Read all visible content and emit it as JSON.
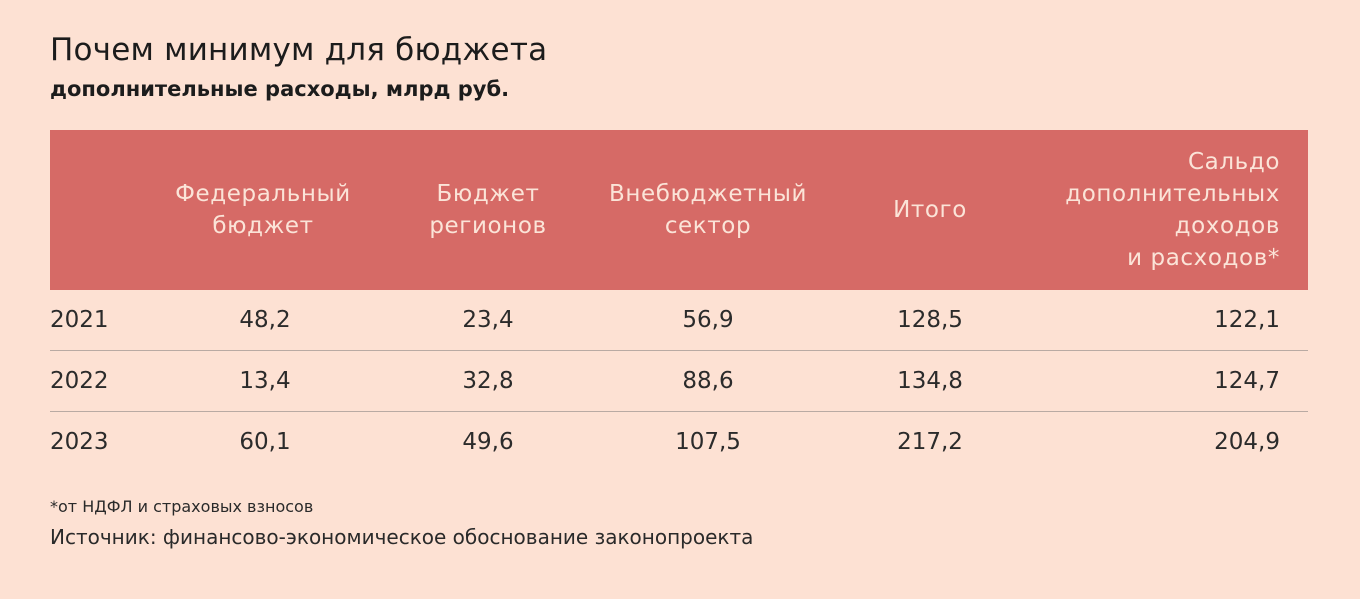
{
  "chart_data": {
    "type": "table",
    "title": "Почем минимум для бюджета",
    "subtitle": "дополнительные расходы, млрд руб.",
    "columns": [
      "Федеральный\nбюджет",
      "Бюджет\nрегионов",
      "Внебюджетный\nсектор",
      "Итого",
      "Сальдо\nдополнительных\nдоходов \nи расходов*"
    ],
    "rows": [
      {
        "year": "2021",
        "values": [
          "48,2",
          "23,4",
          "56,9",
          "128,5",
          "122,1"
        ]
      },
      {
        "year": "2022",
        "values": [
          "13,4",
          "32,8",
          "88,6",
          "134,8",
          "124,7"
        ]
      },
      {
        "year": "2023",
        "values": [
          "60,1",
          "49,6",
          "107,5",
          "217,2",
          "204,9"
        ]
      }
    ],
    "footnote": "*от НДФЛ и страховых взносов",
    "source": "Источник: финансово-экономическое обоснование законопроекта"
  },
  "colors": {
    "background": "#fde1d3",
    "header_band": "#d66a66",
    "header_text": "#fbe4d8"
  }
}
